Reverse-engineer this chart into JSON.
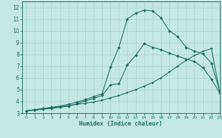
{
  "xlabel": "Humidex (Indice chaleur)",
  "bg_color": "#c5e8e5",
  "grid_color": "#aed4d0",
  "line_color": "#1a6e62",
  "xlim": [
    -0.5,
    23
  ],
  "ylim": [
    3,
    12.5
  ],
  "xticks": [
    0,
    1,
    2,
    3,
    4,
    5,
    6,
    7,
    8,
    9,
    10,
    11,
    12,
    13,
    14,
    15,
    16,
    17,
    18,
    19,
    20,
    21,
    22,
    23
  ],
  "yticks": [
    3,
    4,
    5,
    6,
    7,
    8,
    9,
    10,
    11,
    12
  ],
  "series1_x": [
    0,
    1,
    2,
    3,
    4,
    5,
    6,
    7,
    8,
    9,
    10,
    11,
    12,
    13,
    14,
    15,
    16,
    17,
    18,
    19,
    20,
    21,
    22,
    23
  ],
  "series1_y": [
    3.2,
    3.25,
    3.35,
    3.45,
    3.55,
    3.65,
    3.75,
    3.85,
    3.95,
    4.1,
    4.3,
    4.5,
    4.75,
    5.0,
    5.3,
    5.6,
    6.0,
    6.5,
    7.0,
    7.5,
    7.9,
    8.25,
    8.5,
    4.75
  ],
  "series2_x": [
    0,
    1,
    2,
    3,
    4,
    5,
    6,
    7,
    8,
    9,
    10,
    11,
    12,
    13,
    14,
    15,
    16,
    17,
    18,
    19,
    20,
    21,
    22,
    23
  ],
  "series2_y": [
    3.2,
    3.3,
    3.4,
    3.5,
    3.6,
    3.75,
    3.95,
    4.15,
    4.4,
    4.65,
    6.9,
    8.6,
    11.0,
    11.5,
    11.75,
    11.7,
    11.1,
    10.0,
    9.5,
    8.6,
    8.25,
    8.05,
    7.25,
    4.85
  ],
  "series3_x": [
    0,
    1,
    2,
    3,
    4,
    5,
    6,
    7,
    8,
    9,
    10,
    11,
    12,
    13,
    14,
    15,
    16,
    17,
    18,
    19,
    20,
    21,
    22,
    23
  ],
  "series3_y": [
    3.2,
    3.3,
    3.35,
    3.4,
    3.5,
    3.6,
    3.8,
    4.05,
    4.25,
    4.5,
    5.4,
    5.5,
    7.1,
    7.9,
    8.9,
    8.6,
    8.4,
    8.1,
    7.85,
    7.6,
    7.4,
    6.85,
    5.9,
    4.7
  ]
}
